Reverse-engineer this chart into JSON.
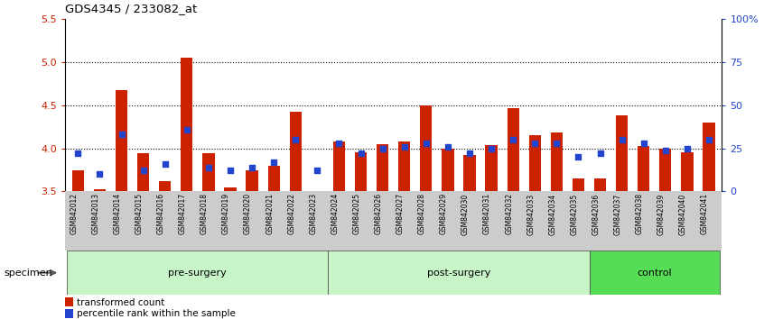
{
  "title": "GDS4345 / 233082_at",
  "samples": [
    "GSM842012",
    "GSM842013",
    "GSM842014",
    "GSM842015",
    "GSM842016",
    "GSM842017",
    "GSM842018",
    "GSM842019",
    "GSM842020",
    "GSM842021",
    "GSM842022",
    "GSM842023",
    "GSM842024",
    "GSM842025",
    "GSM842026",
    "GSM842027",
    "GSM842028",
    "GSM842029",
    "GSM842030",
    "GSM842031",
    "GSM842032",
    "GSM842033",
    "GSM842034",
    "GSM842035",
    "GSM842036",
    "GSM842037",
    "GSM842038",
    "GSM842039",
    "GSM842040",
    "GSM842041"
  ],
  "red_values": [
    3.75,
    3.52,
    4.68,
    3.94,
    3.62,
    5.05,
    3.94,
    3.55,
    3.75,
    3.8,
    4.43,
    3.5,
    4.08,
    3.95,
    4.05,
    4.08,
    4.5,
    4.0,
    3.92,
    4.04,
    4.47,
    4.15,
    4.18,
    3.65,
    3.65,
    4.38,
    4.03,
    4.0,
    3.95,
    4.3
  ],
  "blue_values": [
    22,
    10,
    33,
    12,
    16,
    36,
    14,
    12,
    14,
    17,
    30,
    12,
    28,
    22,
    25,
    26,
    28,
    26,
    22,
    25,
    30,
    28,
    28,
    20,
    22,
    30,
    28,
    24,
    25,
    30
  ],
  "groups": [
    {
      "label": "pre-surgery",
      "start": 0,
      "end": 11,
      "color": "#c8f5c8"
    },
    {
      "label": "post-surgery",
      "start": 12,
      "end": 23,
      "color": "#c8f5c8"
    },
    {
      "label": "control",
      "start": 24,
      "end": 29,
      "color": "#55dd55"
    }
  ],
  "ylim_left": [
    3.5,
    5.5
  ],
  "ylim_right": [
    0,
    100
  ],
  "yticks_left": [
    3.5,
    4.0,
    4.5,
    5.0,
    5.5
  ],
  "yticks_right": [
    0,
    25,
    50,
    75,
    100
  ],
  "ytick_labels_right": [
    "0",
    "25",
    "50",
    "75",
    "100%"
  ],
  "dotted_lines": [
    4.0,
    4.5,
    5.0
  ],
  "bar_color": "#cc2200",
  "blue_color": "#2244cc",
  "tick_color_left": "#cc2200",
  "tick_color_right": "#2244cc",
  "xtick_bg_color": "#cccccc",
  "specimen_label": "specimen",
  "legend_red": "transformed count",
  "legend_blue": "percentile rank within the sample"
}
